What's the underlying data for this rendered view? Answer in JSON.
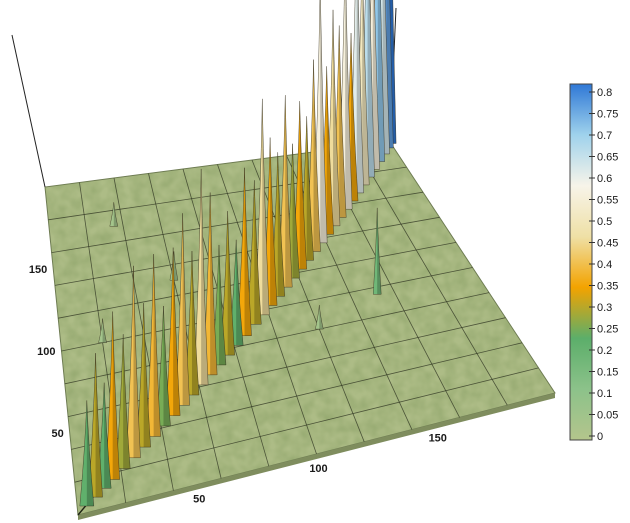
{
  "chart_data": {
    "type": "heatmap",
    "render": "3d-surface",
    "title": "",
    "xlabel": "",
    "ylabel": "",
    "xlim": [
      0,
      200
    ],
    "ylim": [
      0,
      200
    ],
    "zlim": [
      0,
      0.8
    ],
    "x_ticks": [
      {
        "value": 50,
        "label": "50"
      },
      {
        "value": 100,
        "label": "100"
      },
      {
        "value": 150,
        "label": "150"
      }
    ],
    "y_ticks": [
      {
        "value": 50,
        "label": "50"
      },
      {
        "value": 100,
        "label": "100"
      },
      {
        "value": 150,
        "label": "150"
      }
    ],
    "grid": true,
    "colorbar": {
      "placement": "right",
      "min": 0,
      "max": 0.8,
      "colors": [
        "#b4c58c",
        "#8cc28a",
        "#5cae6a",
        "#f3a300",
        "#efe0a6",
        "#f7f4e9",
        "#9fd2ec",
        "#2f78d6"
      ],
      "ticks": [
        "0",
        "0.05",
        "0.1",
        "0.15",
        "0.2",
        "0.25",
        "0.3",
        "0.35",
        "0.4",
        "0.45",
        "0.5",
        "0.55",
        "0.6",
        "0.65",
        "0.7",
        "0.75",
        "0.8"
      ]
    },
    "diagonal_peaks": [
      {
        "x": 4,
        "y": 4,
        "z": 0.22
      },
      {
        "x": 8,
        "y": 8,
        "z": 0.3
      },
      {
        "x": 12,
        "y": 12,
        "z": 0.22
      },
      {
        "x": 16,
        "y": 16,
        "z": 0.35
      },
      {
        "x": 21,
        "y": 21,
        "z": 0.28
      },
      {
        "x": 26,
        "y": 26,
        "z": 0.4
      },
      {
        "x": 31,
        "y": 31,
        "z": 0.3
      },
      {
        "x": 36,
        "y": 36,
        "z": 0.38
      },
      {
        "x": 41,
        "y": 41,
        "z": 0.25
      },
      {
        "x": 46,
        "y": 46,
        "z": 0.35
      },
      {
        "x": 51,
        "y": 51,
        "z": 0.4
      },
      {
        "x": 56,
        "y": 56,
        "z": 0.3
      },
      {
        "x": 61,
        "y": 61,
        "z": 0.45
      },
      {
        "x": 66,
        "y": 66,
        "z": 0.38
      },
      {
        "x": 71,
        "y": 71,
        "z": 0.25
      },
      {
        "x": 76,
        "y": 76,
        "z": 0.3
      },
      {
        "x": 81,
        "y": 81,
        "z": 0.22
      },
      {
        "x": 86,
        "y": 86,
        "z": 0.35
      },
      {
        "x": 92,
        "y": 92,
        "z": 0.3
      },
      {
        "x": 97,
        "y": 97,
        "z": 0.45
      },
      {
        "x": 102,
        "y": 102,
        "z": 0.35
      },
      {
        "x": 107,
        "y": 107,
        "z": 0.3
      },
      {
        "x": 112,
        "y": 112,
        "z": 0.4
      },
      {
        "x": 117,
        "y": 117,
        "z": 0.28
      },
      {
        "x": 122,
        "y": 122,
        "z": 0.35
      },
      {
        "x": 127,
        "y": 127,
        "z": 0.3
      },
      {
        "x": 132,
        "y": 132,
        "z": 0.4
      },
      {
        "x": 137,
        "y": 137,
        "z": 0.55
      },
      {
        "x": 142,
        "y": 142,
        "z": 0.35
      },
      {
        "x": 147,
        "y": 147,
        "z": 0.45
      },
      {
        "x": 152,
        "y": 152,
        "z": 0.4
      },
      {
        "x": 157,
        "y": 157,
        "z": 0.55
      },
      {
        "x": 162,
        "y": 162,
        "z": 0.35
      },
      {
        "x": 167,
        "y": 167,
        "z": 0.6
      },
      {
        "x": 172,
        "y": 172,
        "z": 0.5
      },
      {
        "x": 177,
        "y": 177,
        "z": 0.65
      },
      {
        "x": 182,
        "y": 182,
        "z": 0.55
      },
      {
        "x": 187,
        "y": 187,
        "z": 0.7
      },
      {
        "x": 192,
        "y": 192,
        "z": 0.62
      },
      {
        "x": 196,
        "y": 196,
        "z": 0.75
      },
      {
        "x": 199,
        "y": 199,
        "z": 0.8
      }
    ],
    "off_diagonal_peaks": [
      {
        "x": 152,
        "y": 95,
        "z": 0.18
      },
      {
        "x": 120,
        "y": 80,
        "z": 0.05
      },
      {
        "x": 60,
        "y": 130,
        "z": 0.06
      },
      {
        "x": 35,
        "y": 170,
        "z": 0.05
      },
      {
        "x": 150,
        "y": 160,
        "z": 0.04
      },
      {
        "x": 20,
        "y": 100,
        "z": 0.05
      }
    ]
  }
}
